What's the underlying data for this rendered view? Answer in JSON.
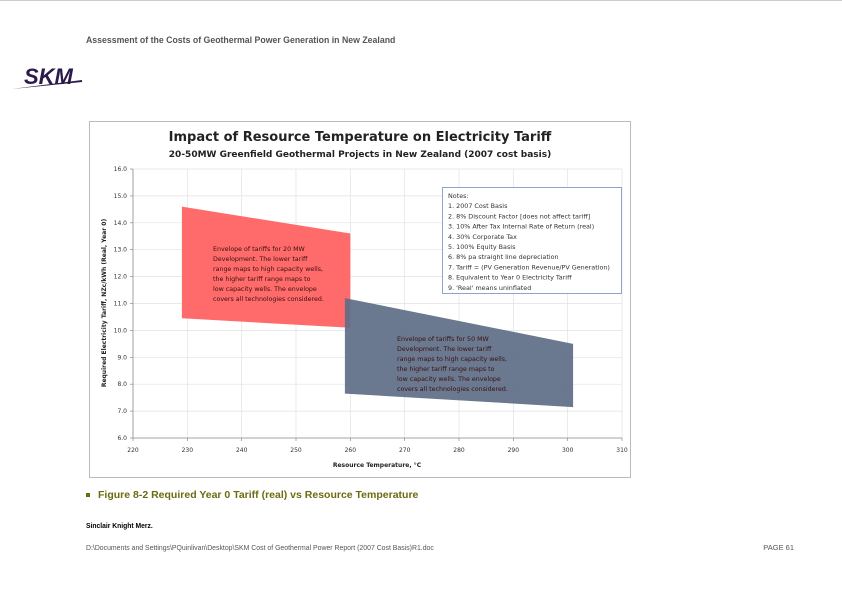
{
  "header": {
    "title": "Assessment of the Costs of Geothermal Power Generation in New Zealand"
  },
  "logo": {
    "text": "SKM"
  },
  "chart_data": {
    "type": "area",
    "title": "Impact of Resource Temperature on Electricity Tariff",
    "subtitle": "20-50MW Greenfield Geothermal Projects in New Zealand (2007 cost basis)",
    "xlabel": "Resource Temperature, °C",
    "ylabel": "Required Electricity Tariff, NZc/kWh (Real, Year 0)",
    "xlim": [
      220,
      310
    ],
    "ylim": [
      6.0,
      16.0
    ],
    "xticks": [
      "220",
      "230",
      "240",
      "250",
      "260",
      "270",
      "280",
      "290",
      "300",
      "310"
    ],
    "yticks": [
      "6.0",
      "7.0",
      "8.0",
      "9.0",
      "10.0",
      "11.0",
      "12.0",
      "13.0",
      "14.0",
      "15.0",
      "16.0"
    ],
    "grid": true,
    "series": [
      {
        "name": "20 MW envelope",
        "color": "#ff6b6b",
        "polygon": [
          [
            229,
            14.6
          ],
          [
            260,
            13.6
          ],
          [
            260,
            10.1
          ],
          [
            229,
            10.45
          ]
        ],
        "annotation": [
          "Envelope of tariffs for 20 MW",
          "Development.  The  lower tariff",
          "range maps to high capacity wells,",
          "the  higher tariff range maps to",
          "low capacity wells.  The envelope",
          "covers all technologies  considered."
        ]
      },
      {
        "name": "50 MW envelope",
        "color": "#5d6e85",
        "polygon": [
          [
            259,
            11.2
          ],
          [
            301,
            9.5
          ],
          [
            301,
            7.15
          ],
          [
            259,
            7.65
          ]
        ],
        "annotation": [
          "Envelope of tariffs for 50 MW",
          "Development.  The  lower tariff",
          "range maps to high capacity wells,",
          "the  higher tariff range maps to",
          "low capacity wells.  The envelope",
          "covers all technologies  considered."
        ]
      }
    ],
    "notes": [
      "Notes:",
      "1. 2007  Cost Basis",
      "2. 8%  Discount Factor [does not affect tariff]",
      "3. 10%  After Tax Internal Rate of Return (real)",
      "4. 30%  Corporate Tax",
      "5. 100%  Equity Basis",
      "6. 8% pa straight line depreciation",
      "7. Tariff = (PV Generation Revenue/PV Generation)",
      "8. Equivalent to Year 0  Electricity  Tariff",
      "9. 'Real'  means uninflated"
    ]
  },
  "caption": {
    "text": "Figure 8-2   Required Year 0 Tariff (real) vs Resource Temperature"
  },
  "footer": {
    "company": "Sinclair Knight Merz.",
    "path": "D:\\Documents and Settings\\PQuinlivan\\Desktop\\SKM Cost of Geothermal Power Report (2007 Cost Basis)R1.doc",
    "page": "PAGE 61"
  }
}
